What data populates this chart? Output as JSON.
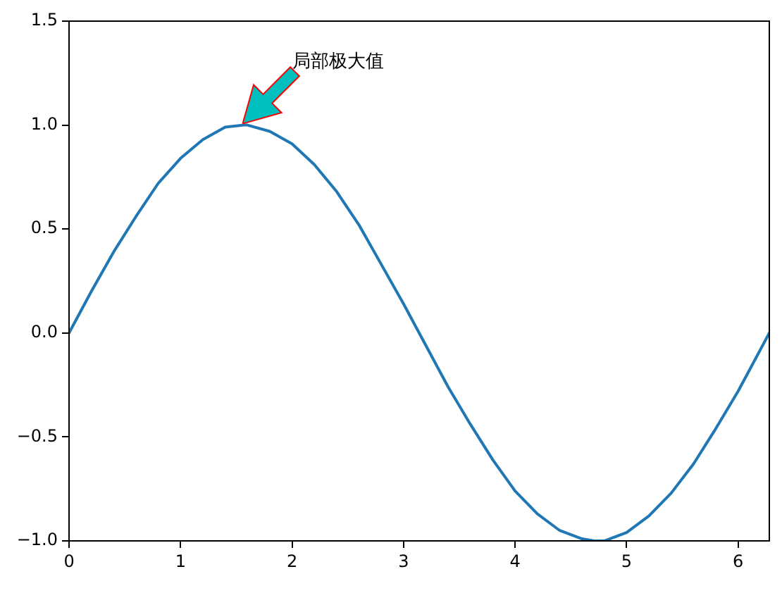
{
  "chart_data": {
    "type": "line",
    "x": [
      0,
      0.2,
      0.4,
      0.6,
      0.8,
      1.0,
      1.2,
      1.4,
      1.57,
      1.6,
      1.8,
      2.0,
      2.2,
      2.4,
      2.6,
      2.8,
      3.0,
      3.2,
      3.4,
      3.6,
      3.8,
      4.0,
      4.2,
      4.4,
      4.6,
      4.71,
      4.8,
      5.0,
      5.2,
      5.4,
      5.6,
      5.8,
      6.0,
      6.2,
      6.28
    ],
    "series": [
      {
        "color": "#1f77b4",
        "values": [
          0,
          0.2,
          0.39,
          0.56,
          0.72,
          0.84,
          0.93,
          0.99,
          1.0,
          1.0,
          0.97,
          0.91,
          0.81,
          0.68,
          0.52,
          0.33,
          0.14,
          -0.06,
          -0.26,
          -0.44,
          -0.61,
          -0.76,
          -0.87,
          -0.95,
          -0.99,
          -1.0,
          -1.0,
          -0.96,
          -0.88,
          -0.77,
          -0.63,
          -0.46,
          -0.28,
          -0.08,
          0.0
        ]
      }
    ],
    "xlim": [
      0,
      6.28
    ],
    "ylim": [
      -1,
      1.5
    ],
    "xticks": [
      0,
      1,
      2,
      3,
      4,
      5,
      6
    ],
    "yticks": [
      {
        "value": -1,
        "label": "−1.0"
      },
      {
        "value": -0.5,
        "label": "−0.5"
      },
      {
        "value": 0,
        "label": "0.0"
      },
      {
        "value": 0.5,
        "label": "0.5"
      },
      {
        "value": 1,
        "label": "1.0"
      },
      {
        "value": 1.5,
        "label": "1.5"
      }
    ],
    "annotations": [
      {
        "text": "局部极大值",
        "x": 1.57,
        "y": 1
      }
    ]
  }
}
